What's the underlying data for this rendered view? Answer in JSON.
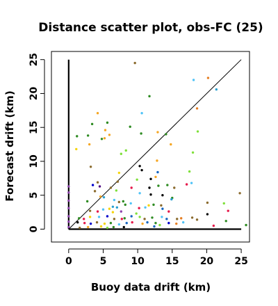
{
  "chart_data": {
    "type": "scatter",
    "title": "Distance scatter plot, obs-FC (25)",
    "xlabel": "Buoy data drift (km)",
    "ylabel": "Forecast drift (km)",
    "xlim": [
      -2.5,
      26.2
    ],
    "ylim": [
      -1.9,
      26.2
    ],
    "xticks": [
      0,
      5,
      10,
      15,
      20,
      25
    ],
    "yticks": [
      0,
      5,
      10,
      15,
      20,
      25
    ],
    "grid": false,
    "legend": "none",
    "reference_lines": [
      {
        "x": [
          0,
          25
        ],
        "y": [
          0,
          25
        ],
        "style": "thin",
        "color": "#000000"
      },
      {
        "x": [
          0,
          0
        ],
        "y": [
          0,
          25
        ],
        "style": "thick",
        "color": "#000000"
      },
      {
        "x": [
          0,
          25
        ],
        "y": [
          0,
          0
        ],
        "style": "thick",
        "color": "#000000"
      }
    ],
    "points": [
      {
        "x": 9.6,
        "y": 24.5,
        "color": "#8B6B2E"
      },
      {
        "x": 18.1,
        "y": 22.0,
        "color": "#4FC3F7"
      },
      {
        "x": 20.2,
        "y": 22.3,
        "color": "#E67E22"
      },
      {
        "x": 21.4,
        "y": 20.6,
        "color": "#29A0D0"
      },
      {
        "x": 11.7,
        "y": 19.6,
        "color": "#2E8B22"
      },
      {
        "x": 10.6,
        "y": 17.1,
        "color": "#4FC3F7"
      },
      {
        "x": 18.6,
        "y": 17.8,
        "color": "#E67E22"
      },
      {
        "x": 4.2,
        "y": 17.1,
        "color": "#F5A623"
      },
      {
        "x": 5.6,
        "y": 15.7,
        "color": "#2E8B22"
      },
      {
        "x": 3.4,
        "y": 15.5,
        "color": "#2E8B22"
      },
      {
        "x": 8.9,
        "y": 15.1,
        "color": "#2E8B22"
      },
      {
        "x": 5.3,
        "y": 14.6,
        "color": "#F5A623"
      },
      {
        "x": 10.5,
        "y": 14.1,
        "color": "#2E8B22"
      },
      {
        "x": 12.9,
        "y": 14.3,
        "color": "#F5A623"
      },
      {
        "x": 14.1,
        "y": 14.0,
        "color": "#2E8B22"
      },
      {
        "x": 18.7,
        "y": 14.4,
        "color": "#7FE03A"
      },
      {
        "x": 1.2,
        "y": 13.7,
        "color": "#2E8B22"
      },
      {
        "x": 2.8,
        "y": 13.8,
        "color": "#2E8B22"
      },
      {
        "x": 5.9,
        "y": 13.9,
        "color": "#F5A623"
      },
      {
        "x": 4.8,
        "y": 13.3,
        "color": "#2E8B22"
      },
      {
        "x": 5.2,
        "y": 13.4,
        "color": "#F5A623"
      },
      {
        "x": 3.0,
        "y": 12.5,
        "color": "#F5A623"
      },
      {
        "x": 14.8,
        "y": 12.5,
        "color": "#F5A623"
      },
      {
        "x": 1.1,
        "y": 11.8,
        "color": "#F5D40A"
      },
      {
        "x": 7.6,
        "y": 11.1,
        "color": "#7FE03A"
      },
      {
        "x": 8.3,
        "y": 11.6,
        "color": "#7FE03A"
      },
      {
        "x": 18.0,
        "y": 11.3,
        "color": "#7FE03A"
      },
      {
        "x": 12.8,
        "y": 10.1,
        "color": "#F5A623"
      },
      {
        "x": 3.2,
        "y": 9.2,
        "color": "#8B6B2E"
      },
      {
        "x": 10.3,
        "y": 9.3,
        "color": "#000000"
      },
      {
        "x": 10.6,
        "y": 8.7,
        "color": "#000000"
      },
      {
        "x": 12.9,
        "y": 8.4,
        "color": "#1565C0"
      },
      {
        "x": 17.5,
        "y": 8.5,
        "color": "#7FE03A"
      },
      {
        "x": 7.3,
        "y": 8.3,
        "color": "#F5D40A"
      },
      {
        "x": 12.6,
        "y": 7.7,
        "color": "#F5A623"
      },
      {
        "x": 7.1,
        "y": 7.0,
        "color": "#8B6B2E"
      },
      {
        "x": 11.9,
        "y": 7.4,
        "color": "#000000"
      },
      {
        "x": 9.9,
        "y": 7.3,
        "color": "#7FE03A"
      },
      {
        "x": 17.8,
        "y": 6.8,
        "color": "#4FC3F7"
      },
      {
        "x": 3.5,
        "y": 6.5,
        "color": "#0000CC"
      },
      {
        "x": 4.2,
        "y": 6.9,
        "color": "#8B6B2E"
      },
      {
        "x": 17.1,
        "y": 6.6,
        "color": "#E6194B"
      },
      {
        "x": 4.5,
        "y": 6.3,
        "color": "#4B0082"
      },
      {
        "x": 6.1,
        "y": 6.1,
        "color": "#8B6B2E"
      },
      {
        "x": 13.0,
        "y": 6.4,
        "color": "#2E8B22"
      },
      {
        "x": 14.3,
        "y": 6.5,
        "color": "#2E8B22"
      },
      {
        "x": 0.0,
        "y": 6.3,
        "color": "#8E44AD"
      },
      {
        "x": 9.1,
        "y": 6.1,
        "color": "#E6194B"
      },
      {
        "x": 11.7,
        "y": 6.1,
        "color": "#000000"
      },
      {
        "x": 15.3,
        "y": 6.1,
        "color": "#8B6B2E"
      },
      {
        "x": 3.8,
        "y": 5.6,
        "color": "#8B6B2E"
      },
      {
        "x": 6.9,
        "y": 5.7,
        "color": "#7FE03A"
      },
      {
        "x": 0.0,
        "y": 5.4,
        "color": "#8E44AD"
      },
      {
        "x": 10.3,
        "y": 5.3,
        "color": "#4FC3F7"
      },
      {
        "x": 24.8,
        "y": 5.3,
        "color": "#8B6B2E"
      },
      {
        "x": 11.9,
        "y": 5.1,
        "color": "#000000"
      },
      {
        "x": 13.6,
        "y": 5.0,
        "color": "#000000"
      },
      {
        "x": 4.6,
        "y": 4.8,
        "color": "#F5A623"
      },
      {
        "x": 5.1,
        "y": 4.7,
        "color": "#29A0D0"
      },
      {
        "x": 15.0,
        "y": 4.6,
        "color": "#2E8B22"
      },
      {
        "x": 0.0,
        "y": 4.2,
        "color": "#8E44AD"
      },
      {
        "x": 2.7,
        "y": 4.1,
        "color": "#2E8B22"
      },
      {
        "x": 6.6,
        "y": 4.3,
        "color": "#4FC3F7"
      },
      {
        "x": 7.3,
        "y": 4.0,
        "color": "#8B6B2E"
      },
      {
        "x": 7.9,
        "y": 4.1,
        "color": "#2E8B22"
      },
      {
        "x": 14.9,
        "y": 4.4,
        "color": "#29A0D0"
      },
      {
        "x": 8.2,
        "y": 3.6,
        "color": "#2E8B22"
      },
      {
        "x": 9.0,
        "y": 3.8,
        "color": "#4FC3F7"
      },
      {
        "x": 11.6,
        "y": 3.5,
        "color": "#F5D40A"
      },
      {
        "x": 12.3,
        "y": 3.6,
        "color": "#2E8B22"
      },
      {
        "x": 13.4,
        "y": 3.5,
        "color": "#8B6B2E"
      },
      {
        "x": 22.5,
        "y": 3.8,
        "color": "#7FE03A"
      },
      {
        "x": 0.0,
        "y": 3.1,
        "color": "#8E44AD"
      },
      {
        "x": 5.9,
        "y": 3.0,
        "color": "#F5D40A"
      },
      {
        "x": 6.4,
        "y": 3.3,
        "color": "#29A0D0"
      },
      {
        "x": 7.0,
        "y": 3.2,
        "color": "#29A0D0"
      },
      {
        "x": 10.2,
        "y": 3.1,
        "color": "#E6194B"
      },
      {
        "x": 11.1,
        "y": 3.2,
        "color": "#4FC3F7"
      },
      {
        "x": 13.6,
        "y": 3.0,
        "color": "#1565C0"
      },
      {
        "x": 20.1,
        "y": 3.9,
        "color": "#8B6B2E"
      },
      {
        "x": 3.1,
        "y": 2.7,
        "color": "#8B6B2E"
      },
      {
        "x": 4.2,
        "y": 2.6,
        "color": "#E6194B"
      },
      {
        "x": 5.0,
        "y": 2.9,
        "color": "#4FC3F7"
      },
      {
        "x": 6.4,
        "y": 2.5,
        "color": "#F5D40A"
      },
      {
        "x": 7.6,
        "y": 2.6,
        "color": "#8E44AD"
      },
      {
        "x": 9.8,
        "y": 2.3,
        "color": "#7FE03A"
      },
      {
        "x": 14.5,
        "y": 2.6,
        "color": "#E6194B"
      },
      {
        "x": 20.1,
        "y": 2.2,
        "color": "#000000"
      },
      {
        "x": 23.1,
        "y": 2.7,
        "color": "#E6194B"
      },
      {
        "x": 0.0,
        "y": 1.9,
        "color": "#8E44AD"
      },
      {
        "x": 1.5,
        "y": 1.6,
        "color": "#2E8B22"
      },
      {
        "x": 2.2,
        "y": 1.5,
        "color": "#E6194B"
      },
      {
        "x": 3.1,
        "y": 1.8,
        "color": "#F5D40A"
      },
      {
        "x": 4.4,
        "y": 1.8,
        "color": "#4FC3F7"
      },
      {
        "x": 5.6,
        "y": 1.9,
        "color": "#0000CC"
      },
      {
        "x": 6.6,
        "y": 1.5,
        "color": "#8B6B2E"
      },
      {
        "x": 7.7,
        "y": 1.5,
        "color": "#E6194B"
      },
      {
        "x": 8.1,
        "y": 1.6,
        "color": "#2E8B22"
      },
      {
        "x": 9.1,
        "y": 1.9,
        "color": "#1565C0"
      },
      {
        "x": 10.3,
        "y": 1.8,
        "color": "#7FE03A"
      },
      {
        "x": 11.0,
        "y": 1.5,
        "color": "#8B6B2E"
      },
      {
        "x": 12.1,
        "y": 1.7,
        "color": "#2E8B22"
      },
      {
        "x": 13.5,
        "y": 1.8,
        "color": "#4FC3F7"
      },
      {
        "x": 14.2,
        "y": 1.5,
        "color": "#1565C0"
      },
      {
        "x": 15.7,
        "y": 1.5,
        "color": "#8B6B2E"
      },
      {
        "x": 16.3,
        "y": 1.6,
        "color": "#E67E22"
      },
      {
        "x": 17.9,
        "y": 1.7,
        "color": "#8B6B2E"
      },
      {
        "x": 18.6,
        "y": 1.4,
        "color": "#8B6B2E"
      },
      {
        "x": 0.0,
        "y": 1.1,
        "color": "#8E44AD"
      },
      {
        "x": 1.3,
        "y": 1.0,
        "color": "#000000"
      },
      {
        "x": 2.3,
        "y": 0.9,
        "color": "#E6194B"
      },
      {
        "x": 3.2,
        "y": 0.8,
        "color": "#0000CC"
      },
      {
        "x": 4.1,
        "y": 1.0,
        "color": "#8B6B2E"
      },
      {
        "x": 5.2,
        "y": 0.8,
        "color": "#F5D40A"
      },
      {
        "x": 6.1,
        "y": 0.9,
        "color": "#2E8B22"
      },
      {
        "x": 7.3,
        "y": 0.7,
        "color": "#4FC3F7"
      },
      {
        "x": 8.4,
        "y": 0.9,
        "color": "#1565C0"
      },
      {
        "x": 9.2,
        "y": 1.0,
        "color": "#E6194B"
      },
      {
        "x": 10.7,
        "y": 0.8,
        "color": "#F5A623"
      },
      {
        "x": 11.4,
        "y": 1.0,
        "color": "#1565C0"
      },
      {
        "x": 12.6,
        "y": 0.9,
        "color": "#2E8B22"
      },
      {
        "x": 13.2,
        "y": 0.6,
        "color": "#7FE03A"
      },
      {
        "x": 14.5,
        "y": 0.9,
        "color": "#0000CC"
      },
      {
        "x": 15.6,
        "y": 0.8,
        "color": "#E67E22"
      },
      {
        "x": 16.6,
        "y": 1.0,
        "color": "#4FC3F7"
      },
      {
        "x": 21.0,
        "y": 0.5,
        "color": "#E6194B"
      },
      {
        "x": 22.8,
        "y": 1.2,
        "color": "#2E8B22"
      },
      {
        "x": 25.7,
        "y": 0.6,
        "color": "#2E8B22"
      },
      {
        "x": 0.0,
        "y": 0.3,
        "color": "#8E44AD"
      },
      {
        "x": 1.6,
        "y": 0.2,
        "color": "#8B6B2E"
      },
      {
        "x": 2.8,
        "y": 0.3,
        "color": "#F5A623"
      },
      {
        "x": 4.7,
        "y": 0.4,
        "color": "#F5D40A"
      },
      {
        "x": 5.6,
        "y": 0.2,
        "color": "#7FE03A"
      },
      {
        "x": 6.5,
        "y": 0.3,
        "color": "#2E8B22"
      },
      {
        "x": 8.0,
        "y": 0.3,
        "color": "#000000"
      },
      {
        "x": 12.4,
        "y": 0.4,
        "color": "#1565C0"
      }
    ]
  }
}
